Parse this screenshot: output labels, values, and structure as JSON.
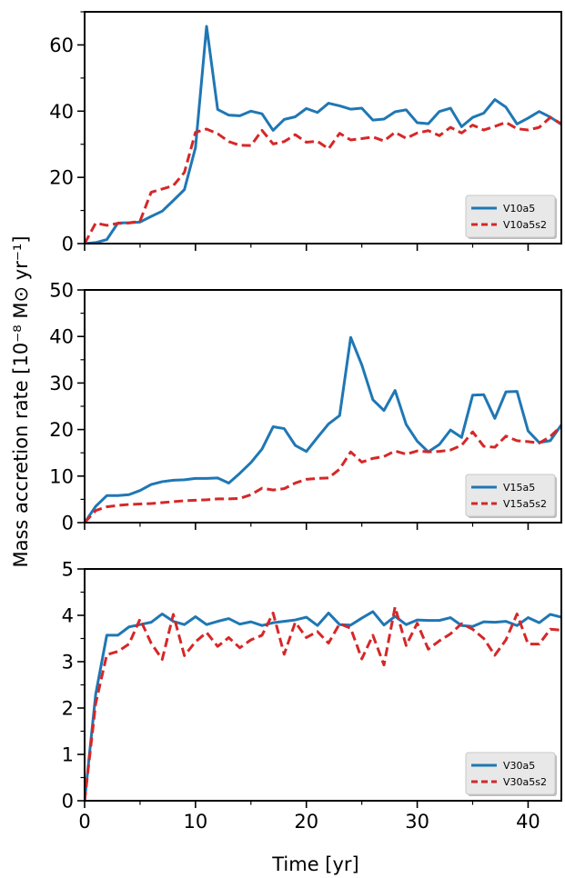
{
  "figure": {
    "ylabel": "Mass accretion rate [10⁻⁸ M⊙ yr⁻¹]",
    "xlabel": "Time [yr]"
  },
  "colors": {
    "solid": "#1f77b4",
    "dashed": "#d62728"
  },
  "chart_data": [
    {
      "type": "line",
      "xlim": [
        0,
        43
      ],
      "ylim": [
        0,
        70
      ],
      "yticks": [
        0,
        20,
        40,
        60
      ],
      "yminor_step": 10,
      "xticks": [
        0,
        10,
        20,
        30,
        40
      ],
      "legend_position": "lower-right",
      "series": [
        {
          "name": "V10a5",
          "style": "solid",
          "x": [
            0,
            1,
            2,
            3,
            4,
            5,
            6,
            7,
            8,
            9,
            10,
            11,
            12,
            13,
            14,
            15,
            16,
            17,
            18,
            19,
            20,
            21,
            22,
            23,
            24,
            25,
            26,
            27,
            28,
            29,
            30,
            31,
            32,
            33,
            34,
            35,
            36,
            37,
            38,
            39,
            40,
            41,
            42,
            43
          ],
          "values": [
            0,
            0.3,
            1.2,
            6.2,
            6.3,
            6.5,
            8.2,
            9.8,
            13,
            16.3,
            29,
            65.6,
            40.5,
            38.8,
            38.6,
            40,
            39.2,
            34.2,
            37.5,
            38.3,
            40.8,
            39.6,
            42.4,
            41.6,
            40.6,
            40.9,
            37.3,
            37.6,
            39.8,
            40.4,
            36.5,
            36.2,
            39.9,
            40.9,
            35.3,
            38.1,
            39.4,
            43.5,
            41.2,
            36.1,
            37.9,
            39.9,
            38.2,
            36
          ]
        },
        {
          "name": "V10a5s2",
          "style": "dashed",
          "x": [
            0,
            1,
            2,
            3,
            4,
            5,
            6,
            7,
            8,
            9,
            10,
            11,
            12,
            13,
            14,
            15,
            16,
            17,
            18,
            19,
            20,
            21,
            22,
            23,
            24,
            25,
            26,
            27,
            28,
            29,
            30,
            31,
            32,
            33,
            34,
            35,
            36,
            37,
            38,
            39,
            40,
            41,
            42,
            43
          ],
          "values": [
            0,
            6.2,
            5.5,
            6.1,
            6.2,
            6.8,
            15.5,
            16.5,
            17.5,
            21.5,
            33.6,
            34.6,
            33.2,
            30.8,
            29.7,
            29.6,
            34.2,
            30.1,
            30.8,
            32.9,
            30.6,
            30.9,
            28.6,
            33.3,
            31.3,
            31.7,
            32.2,
            31,
            33.6,
            31.8,
            33.4,
            34.1,
            32.6,
            35.1,
            33.4,
            35.8,
            34.3,
            35.4,
            36.6,
            34.7,
            34.3,
            35.1,
            38.1,
            36.2
          ]
        }
      ]
    },
    {
      "type": "line",
      "xlim": [
        0,
        43
      ],
      "ylim": [
        0,
        50
      ],
      "yticks": [
        0,
        10,
        20,
        30,
        40,
        50
      ],
      "yminor_step": 5,
      "xticks": [
        0,
        10,
        20,
        30,
        40
      ],
      "legend_position": "lower-right",
      "series": [
        {
          "name": "V15a5",
          "style": "solid",
          "x": [
            0,
            1,
            2,
            3,
            4,
            5,
            6,
            7,
            8,
            9,
            10,
            11,
            12,
            13,
            14,
            15,
            16,
            17,
            18,
            19,
            20,
            21,
            22,
            23,
            24,
            25,
            26,
            27,
            28,
            29,
            30,
            31,
            32,
            33,
            34,
            35,
            36,
            37,
            38,
            39,
            40,
            41,
            42,
            43
          ],
          "values": [
            0,
            3.5,
            5.8,
            5.8,
            6,
            6.9,
            8.2,
            8.8,
            9.1,
            9.2,
            9.5,
            9.5,
            9.6,
            8.5,
            10.6,
            12.9,
            15.8,
            20.6,
            20.2,
            16.6,
            15.3,
            18.3,
            21.2,
            23,
            39.8,
            33.9,
            26.4,
            24.1,
            28.4,
            21.1,
            17.5,
            15.2,
            16.8,
            19.9,
            18.3,
            27.4,
            27.5,
            22.4,
            28.1,
            28.2,
            19.7,
            17.2,
            17.6,
            21
          ]
        },
        {
          "name": "V15a5s2",
          "style": "dashed",
          "x": [
            0,
            1,
            2,
            3,
            4,
            5,
            6,
            7,
            8,
            9,
            10,
            11,
            12,
            13,
            14,
            15,
            16,
            17,
            18,
            19,
            20,
            21,
            22,
            23,
            24,
            25,
            26,
            27,
            28,
            29,
            30,
            31,
            32,
            33,
            34,
            35,
            36,
            37,
            38,
            39,
            40,
            41,
            42,
            43
          ],
          "values": [
            0,
            2.6,
            3.4,
            3.7,
            3.9,
            4,
            4.1,
            4.3,
            4.5,
            4.7,
            4.8,
            4.9,
            5.1,
            5.1,
            5.2,
            6,
            7.4,
            7,
            7.3,
            8.5,
            9.3,
            9.5,
            9.6,
            11.5,
            15.2,
            13,
            13.8,
            14.2,
            15.4,
            14.7,
            15.4,
            15.2,
            15.3,
            15.6,
            16.6,
            19.5,
            16.4,
            16.2,
            18.6,
            17.6,
            17.4,
            17.1,
            18.5,
            20.8
          ]
        }
      ]
    },
    {
      "type": "line",
      "xlim": [
        0,
        43
      ],
      "ylim": [
        0,
        5
      ],
      "yticks": [
        0,
        1,
        2,
        3,
        4,
        5
      ],
      "yminor_step": 0.5,
      "xticks": [
        0,
        10,
        20,
        30,
        40
      ],
      "legend_position": "lower-right",
      "series": [
        {
          "name": "V30a5",
          "style": "solid",
          "x": [
            0,
            1,
            2,
            3,
            4,
            5,
            6,
            7,
            8,
            9,
            10,
            11,
            12,
            13,
            14,
            15,
            16,
            17,
            18,
            19,
            20,
            21,
            22,
            23,
            24,
            25,
            26,
            27,
            28,
            29,
            30,
            31,
            32,
            33,
            34,
            35,
            36,
            37,
            38,
            39,
            40,
            41,
            42,
            43
          ],
          "values": [
            0,
            2.3,
            3.57,
            3.57,
            3.75,
            3.8,
            3.85,
            4.03,
            3.87,
            3.8,
            3.97,
            3.8,
            3.87,
            3.93,
            3.81,
            3.86,
            3.78,
            3.84,
            3.87,
            3.9,
            3.96,
            3.78,
            4.05,
            3.8,
            3.79,
            3.94,
            4.08,
            3.79,
            3.98,
            3.8,
            3.9,
            3.89,
            3.89,
            3.95,
            3.78,
            3.76,
            3.86,
            3.85,
            3.87,
            3.78,
            3.95,
            3.84,
            4.02,
            3.96
          ]
        },
        {
          "name": "V30a5s2",
          "style": "dashed",
          "x": [
            0,
            1,
            2,
            3,
            4,
            5,
            6,
            7,
            8,
            9,
            10,
            11,
            12,
            13,
            14,
            15,
            16,
            17,
            18,
            19,
            20,
            21,
            22,
            23,
            24,
            25,
            26,
            27,
            28,
            29,
            30,
            31,
            32,
            33,
            34,
            35,
            36,
            37,
            38,
            39,
            40,
            41,
            42,
            43
          ],
          "values": [
            0,
            2.1,
            3.15,
            3.22,
            3.38,
            3.92,
            3.4,
            3.05,
            4.02,
            3.13,
            3.43,
            3.63,
            3.33,
            3.52,
            3.3,
            3.47,
            3.57,
            4.05,
            3.16,
            3.85,
            3.52,
            3.65,
            3.4,
            3.82,
            3.72,
            3.06,
            3.57,
            2.93,
            4.18,
            3.35,
            3.83,
            3.27,
            3.45,
            3.6,
            3.82,
            3.7,
            3.5,
            3.14,
            3.47,
            4.03,
            3.38,
            3.38,
            3.7,
            3.68
          ]
        }
      ]
    }
  ]
}
